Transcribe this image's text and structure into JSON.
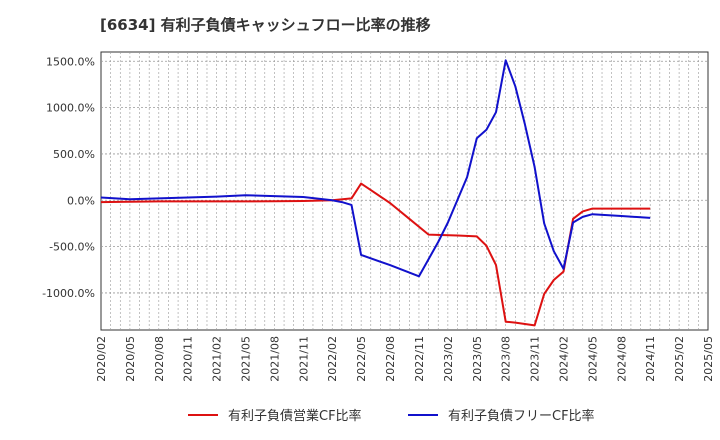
{
  "chart_data": {
    "type": "line",
    "title": "[6634]  有利子負債キャッシュフロー比率の推移",
    "x_ticks": [
      "2020/02",
      "2020/05",
      "2020/08",
      "2020/11",
      "2021/02",
      "2021/05",
      "2021/08",
      "2021/11",
      "2022/02",
      "2022/05",
      "2022/08",
      "2022/11",
      "2023/02",
      "2023/05",
      "2023/08",
      "2023/11",
      "2024/02",
      "2024/05",
      "2024/08",
      "2024/11",
      "2025/02",
      "2025/05"
    ],
    "y_ticks": [
      "1500.0%",
      "1000.0%",
      "500.0%",
      "0.0%",
      "-500.0%",
      "-1000.0%"
    ],
    "y_tick_values": [
      1500,
      1000,
      500,
      0,
      -500,
      -1000
    ],
    "ylim": [
      -1400,
      1600
    ],
    "xlim": [
      "2020/02",
      "2025/05"
    ],
    "grid": true,
    "legend_position": "bottom",
    "series": [
      {
        "name": "有利子負債営業CF比率",
        "color": "#dd1111",
        "points": [
          [
            "2020/02",
            -20
          ],
          [
            "2020/05",
            -15
          ],
          [
            "2020/08",
            -12
          ],
          [
            "2020/11",
            -12
          ],
          [
            "2021/02",
            -12
          ],
          [
            "2021/05",
            -12
          ],
          [
            "2021/08",
            -10
          ],
          [
            "2021/11",
            -8
          ],
          [
            "2022/02",
            0
          ],
          [
            "2022/04",
            20
          ],
          [
            "2022/05",
            180
          ],
          [
            "2022/06",
            110
          ],
          [
            "2022/08",
            -30
          ],
          [
            "2022/10",
            -200
          ],
          [
            "2022/12",
            -370
          ],
          [
            "2023/03",
            -380
          ],
          [
            "2023/05",
            -390
          ],
          [
            "2023/06",
            -490
          ],
          [
            "2023/07",
            -700
          ],
          [
            "2023/08",
            -1310
          ],
          [
            "2023/09",
            -1320
          ],
          [
            "2023/11",
            -1350
          ],
          [
            "2023/12",
            -1010
          ],
          [
            "2024/01",
            -860
          ],
          [
            "2024/02",
            -770
          ],
          [
            "2024/03",
            -200
          ],
          [
            "2024/04",
            -120
          ],
          [
            "2024/05",
            -90
          ],
          [
            "2024/08",
            -90
          ],
          [
            "2024/11",
            -90
          ]
        ]
      },
      {
        "name": "有利子負債フリーCF比率",
        "color": "#1111cc",
        "points": [
          [
            "2020/02",
            30
          ],
          [
            "2020/05",
            10
          ],
          [
            "2020/08",
            20
          ],
          [
            "2020/11",
            30
          ],
          [
            "2021/02",
            40
          ],
          [
            "2021/05",
            55
          ],
          [
            "2021/08",
            45
          ],
          [
            "2021/11",
            35
          ],
          [
            "2022/02",
            0
          ],
          [
            "2022/03",
            -20
          ],
          [
            "2022/04",
            -50
          ],
          [
            "2022/05",
            -590
          ],
          [
            "2022/08",
            -700
          ],
          [
            "2022/11",
            -820
          ],
          [
            "2023/01",
            -450
          ],
          [
            "2023/02",
            -240
          ],
          [
            "2023/04",
            250
          ],
          [
            "2023/05",
            670
          ],
          [
            "2023/06",
            760
          ],
          [
            "2023/07",
            950
          ],
          [
            "2023/08",
            1510
          ],
          [
            "2023/09",
            1230
          ],
          [
            "2023/10",
            820
          ],
          [
            "2023/11",
            360
          ],
          [
            "2023/12",
            -250
          ],
          [
            "2024/01",
            -550
          ],
          [
            "2024/02",
            -740
          ],
          [
            "2024/03",
            -240
          ],
          [
            "2024/04",
            -180
          ],
          [
            "2024/05",
            -150
          ],
          [
            "2024/08",
            -170
          ],
          [
            "2024/11",
            -190
          ]
        ]
      }
    ]
  }
}
